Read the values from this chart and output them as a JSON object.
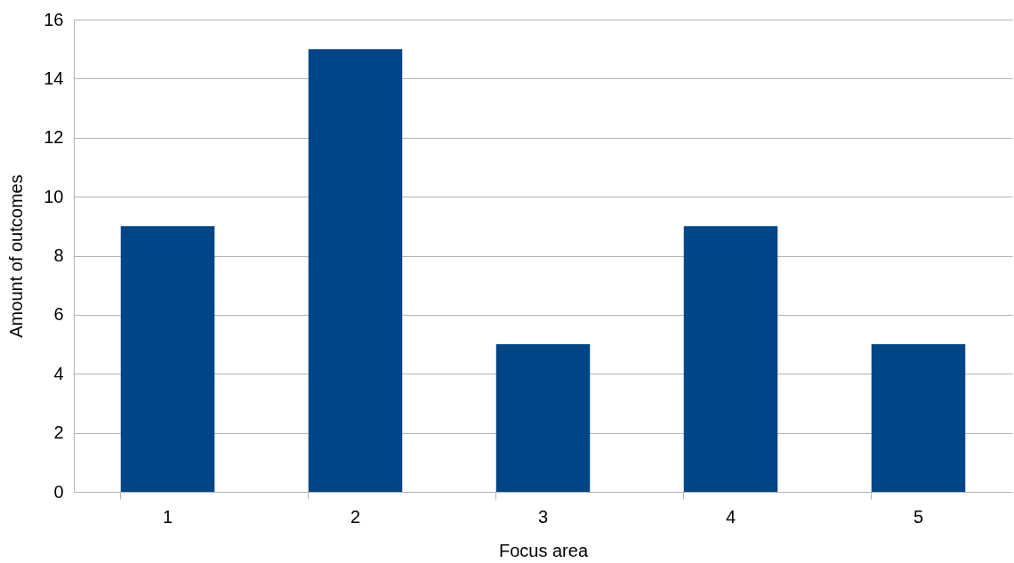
{
  "chart_data": {
    "type": "bar",
    "xlabel": "Focus area",
    "ylabel": "Amount of outcomes",
    "categories": [
      "1",
      "2",
      "3",
      "4",
      "5"
    ],
    "values": [
      9,
      15,
      5,
      9,
      5
    ],
    "color": "#004586",
    "ylim": [
      0,
      16
    ],
    "yticks": [
      0,
      2,
      4,
      6,
      8,
      10,
      12,
      14,
      16
    ],
    "grid": "y"
  }
}
